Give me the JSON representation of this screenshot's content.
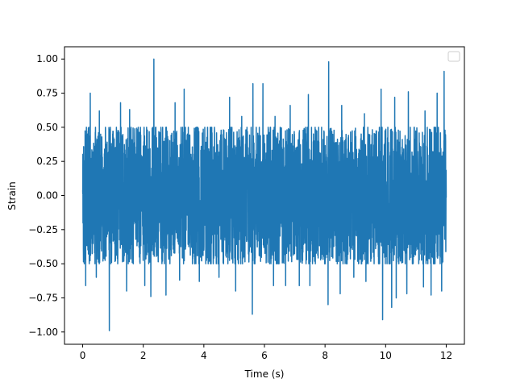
{
  "chart_data": {
    "type": "line",
    "title": "",
    "xlabel": "Time (s)",
    "ylabel": "Strain",
    "xlim": [
      -0.6,
      12.6
    ],
    "ylim": [
      -1.09,
      1.09
    ],
    "xticks": [
      0,
      2,
      4,
      6,
      8,
      10,
      12
    ],
    "xtick_labels": [
      "0",
      "2",
      "4",
      "6",
      "8",
      "10",
      "12"
    ],
    "yticks": [
      -1.0,
      -0.75,
      -0.5,
      -0.25,
      0.0,
      0.25,
      0.5,
      0.75,
      1.0
    ],
    "ytick_labels": [
      "−1.00",
      "−0.75",
      "−0.50",
      "−0.25",
      "0.00",
      "0.25",
      "0.50",
      "0.75",
      "1.00"
    ],
    "grid": false,
    "legend": {
      "placement": "upper right",
      "entries": []
    },
    "series": [
      {
        "color": "#1f77b4",
        "description": "dense noise signal, amplitude roughly within [-0.5, 0.5]",
        "x_range": [
          0,
          12
        ],
        "typical_range": [
          -0.5,
          0.5
        ],
        "peaks": [
          {
            "x": 0.1,
            "y": 0.65
          },
          {
            "x": 0.25,
            "y": 0.75
          },
          {
            "x": 0.55,
            "y": 0.62
          },
          {
            "x": 1.25,
            "y": 0.68
          },
          {
            "x": 1.55,
            "y": 0.63
          },
          {
            "x": 2.35,
            "y": 1.0
          },
          {
            "x": 2.75,
            "y": 0.63
          },
          {
            "x": 3.05,
            "y": 0.68
          },
          {
            "x": 3.35,
            "y": 0.78
          },
          {
            "x": 4.5,
            "y": 0.62
          },
          {
            "x": 4.85,
            "y": 0.72
          },
          {
            "x": 5.25,
            "y": 0.58
          },
          {
            "x": 5.62,
            "y": 0.82
          },
          {
            "x": 5.95,
            "y": 0.82
          },
          {
            "x": 6.35,
            "y": 0.58
          },
          {
            "x": 6.85,
            "y": 0.66
          },
          {
            "x": 7.45,
            "y": 0.74
          },
          {
            "x": 8.12,
            "y": 0.98
          },
          {
            "x": 8.55,
            "y": 0.66
          },
          {
            "x": 9.3,
            "y": 0.6
          },
          {
            "x": 9.85,
            "y": 0.78
          },
          {
            "x": 10.3,
            "y": 0.72
          },
          {
            "x": 10.75,
            "y": 0.76
          },
          {
            "x": 11.3,
            "y": 0.62
          },
          {
            "x": 11.7,
            "y": 0.75
          },
          {
            "x": 11.93,
            "y": 0.91
          }
        ],
        "troughs": [
          {
            "x": 0.1,
            "y": -0.66
          },
          {
            "x": 0.45,
            "y": -0.6
          },
          {
            "x": 0.88,
            "y": -0.99
          },
          {
            "x": 1.45,
            "y": -0.7
          },
          {
            "x": 2.05,
            "y": -0.66
          },
          {
            "x": 2.25,
            "y": -0.74
          },
          {
            "x": 2.75,
            "y": -0.73
          },
          {
            "x": 3.2,
            "y": -0.62
          },
          {
            "x": 3.85,
            "y": -0.63
          },
          {
            "x": 4.5,
            "y": -0.6
          },
          {
            "x": 5.05,
            "y": -0.7
          },
          {
            "x": 5.6,
            "y": -0.87
          },
          {
            "x": 6.3,
            "y": -0.66
          },
          {
            "x": 6.7,
            "y": -0.66
          },
          {
            "x": 7.15,
            "y": -0.66
          },
          {
            "x": 7.5,
            "y": -0.66
          },
          {
            "x": 8.1,
            "y": -0.8
          },
          {
            "x": 8.5,
            "y": -0.72
          },
          {
            "x": 8.95,
            "y": -0.6
          },
          {
            "x": 9.35,
            "y": -0.63
          },
          {
            "x": 9.9,
            "y": -0.91
          },
          {
            "x": 10.2,
            "y": -0.82
          },
          {
            "x": 10.35,
            "y": -0.75
          },
          {
            "x": 10.7,
            "y": -0.72
          },
          {
            "x": 11.25,
            "y": -0.67
          },
          {
            "x": 11.5,
            "y": -0.73
          },
          {
            "x": 11.85,
            "y": -0.7
          }
        ]
      }
    ]
  }
}
